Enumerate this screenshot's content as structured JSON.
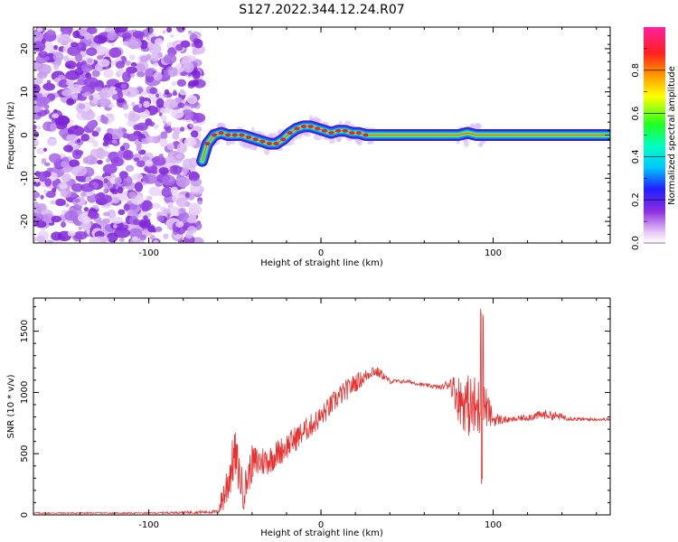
{
  "title": "S127.2022.344.12.24.R07",
  "colors": {
    "snr_line": "#e8302f",
    "axis": "#000000",
    "noise": "#8a2be2",
    "track_core": "#e0204a"
  },
  "chart_data": [
    {
      "type": "heatmap",
      "title": "S127.2022.344.12.24.R07",
      "xlabel": "Height of straight line (km)",
      "ylabel": "Frequency (Hz)",
      "xlim": [
        -167,
        168
      ],
      "ylim": [
        -25,
        25
      ],
      "xticks": [
        -100,
        0,
        100
      ],
      "xtick_labels": [
        "-100",
        "0",
        "100"
      ],
      "yticks": [
        -20,
        -10,
        0,
        10,
        20
      ],
      "ytick_labels": [
        "-20",
        "-10",
        "0",
        "10",
        "20"
      ],
      "noise_region_x": [
        -167,
        -70
      ],
      "track": {
        "x": [
          -69,
          -66,
          -62,
          -58,
          -54,
          -50,
          -46,
          -42,
          -38,
          -34,
          -30,
          -26,
          -22,
          -18,
          -14,
          -10,
          -6,
          -2,
          2,
          6,
          10,
          14,
          18,
          22,
          26,
          30,
          40,
          60,
          80,
          85,
          90,
          95,
          120,
          168
        ],
        "freq": [
          -6,
          -2,
          0,
          0.5,
          0,
          0,
          0,
          -0.5,
          -1,
          -1.5,
          -2,
          -2,
          -1,
          0.5,
          1.5,
          2,
          2,
          1.5,
          1,
          0.5,
          1,
          1,
          0.5,
          0.5,
          0,
          0,
          0,
          0,
          0,
          0.5,
          0,
          0,
          0,
          0
        ]
      },
      "colorbar": {
        "label": "Normalized spectral amplitude",
        "range": [
          0,
          1
        ],
        "ticks": [
          0.0,
          0.2,
          0.4,
          0.6,
          0.8
        ],
        "tick_labels": [
          "0.0",
          "0.2",
          "0.4",
          "0.6",
          "0.8"
        ]
      }
    },
    {
      "type": "line",
      "xlabel": "Height of straight line (km)",
      "ylabel": "SNR (10 * v/v)",
      "xlim": [
        -167,
        168
      ],
      "ylim": [
        0,
        1770
      ],
      "xticks": [
        -100,
        0,
        100
      ],
      "xtick_labels": [
        "-100",
        "0",
        "100"
      ],
      "yticks": [
        0,
        500,
        1000,
        1500
      ],
      "ytick_labels": [
        "0",
        "500",
        "1000",
        "1500"
      ],
      "series": [
        {
          "name": "SNR",
          "envelope_x": [
            -167,
            -100,
            -60,
            -55,
            -50,
            -45,
            -40,
            -30,
            -20,
            -10,
            0,
            10,
            20,
            25,
            30,
            35,
            40,
            50,
            60,
            70,
            75,
            80,
            85,
            90,
            95,
            100,
            110,
            130,
            150,
            168
          ],
          "envelope_y": [
            15,
            15,
            25,
            220,
            500,
            180,
            420,
            450,
            560,
            680,
            800,
            960,
            1080,
            1120,
            1180,
            1150,
            1090,
            1090,
            1060,
            1040,
            1080,
            950,
            900,
            850,
            900,
            780,
            775,
            820,
            780,
            780
          ],
          "noise_amp": [
            5,
            5,
            15,
            200,
            200,
            150,
            150,
            120,
            110,
            100,
            90,
            90,
            80,
            60,
            50,
            40,
            20,
            15,
            15,
            20,
            60,
            200,
            250,
            300,
            200,
            60,
            20,
            40,
            15,
            10
          ]
        }
      ]
    }
  ]
}
